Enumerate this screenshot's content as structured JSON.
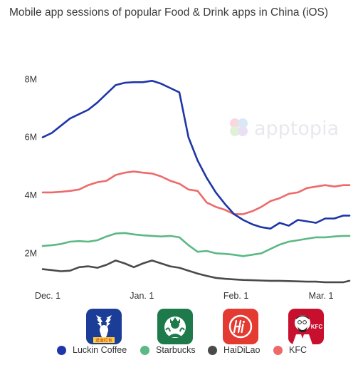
{
  "title": "Mobile app sessions of popular Food & Drink apps in China (iOS)",
  "watermark": "apptopia",
  "legend": [
    {
      "name": "Luckin Coffee",
      "color": "#1e36a8"
    },
    {
      "name": "Starbucks",
      "color": "#5cb884"
    },
    {
      "name": "HaiDiLao",
      "color": "#4a4a4a"
    },
    {
      "name": "KFC",
      "color": "#ee6a6a"
    }
  ],
  "logos": [
    {
      "icon": "luckin-deer-logo",
      "caption": "送金红包",
      "bg": "#1b3c97"
    },
    {
      "icon": "starbucks-siren-logo",
      "bg": "#1e7a4b"
    },
    {
      "icon": "haidilao-hi-logo",
      "bg": "#e33a32"
    },
    {
      "icon": "kfc-colonel-logo",
      "caption": "KFC",
      "bg": "#c8102e"
    }
  ],
  "chart_data": {
    "type": "line",
    "title": "Mobile app sessions of popular Food & Drink apps in China (iOS)",
    "xlabel": "",
    "ylabel": "",
    "x_tick_labels": [
      "Dec. 1",
      "Jan. 1",
      "Feb. 1",
      "Mar. 1"
    ],
    "x_tick_days": [
      0,
      31,
      62,
      90
    ],
    "y_tick_labels": [
      "2M",
      "4M",
      "6M",
      "8M"
    ],
    "y_tick_values": [
      2,
      4,
      6,
      8
    ],
    "ylim": [
      0.9,
      8.4
    ],
    "xlim": [
      0,
      101
    ],
    "grid": false,
    "legend_position": "bottom",
    "x": [
      0,
      3,
      6,
      9,
      12,
      15,
      18,
      21,
      24,
      27,
      30,
      33,
      36,
      39,
      42,
      45,
      48,
      51,
      54,
      57,
      60,
      63,
      66,
      69,
      72,
      75,
      78,
      81,
      84,
      87,
      90,
      93,
      96,
      99,
      101
    ],
    "series": [
      {
        "name": "Luckin Coffee",
        "values": [
          6.0,
          6.15,
          6.4,
          6.65,
          6.8,
          6.95,
          7.2,
          7.5,
          7.8,
          7.88,
          7.9,
          7.9,
          7.95,
          7.85,
          7.7,
          7.55,
          6.0,
          5.2,
          4.6,
          4.1,
          3.7,
          3.35,
          3.15,
          3.0,
          2.9,
          2.85,
          3.05,
          2.95,
          3.15,
          3.1,
          3.05,
          3.2,
          3.2,
          3.3,
          3.3
        ]
      },
      {
        "name": "Starbucks",
        "values": [
          2.25,
          2.28,
          2.32,
          2.4,
          2.42,
          2.4,
          2.45,
          2.58,
          2.68,
          2.7,
          2.65,
          2.62,
          2.6,
          2.58,
          2.6,
          2.55,
          2.28,
          2.05,
          2.08,
          2.0,
          1.98,
          1.95,
          1.9,
          1.95,
          2.0,
          2.15,
          2.3,
          2.4,
          2.45,
          2.5,
          2.55,
          2.55,
          2.58,
          2.6,
          2.6
        ]
      },
      {
        "name": "HaiDiLao",
        "values": [
          1.45,
          1.42,
          1.38,
          1.4,
          1.52,
          1.55,
          1.5,
          1.6,
          1.75,
          1.65,
          1.52,
          1.65,
          1.75,
          1.65,
          1.55,
          1.5,
          1.4,
          1.3,
          1.22,
          1.15,
          1.12,
          1.1,
          1.08,
          1.07,
          1.06,
          1.05,
          1.05,
          1.04,
          1.03,
          1.02,
          1.02,
          1.0,
          1.0,
          1.0,
          1.05
        ]
      },
      {
        "name": "KFC",
        "values": [
          4.1,
          4.1,
          4.12,
          4.15,
          4.2,
          4.35,
          4.45,
          4.5,
          4.7,
          4.78,
          4.82,
          4.78,
          4.75,
          4.65,
          4.5,
          4.4,
          4.2,
          4.15,
          3.75,
          3.6,
          3.5,
          3.35,
          3.35,
          3.45,
          3.6,
          3.8,
          3.9,
          4.05,
          4.1,
          4.25,
          4.3,
          4.35,
          4.3,
          4.35,
          4.35
        ]
      }
    ]
  }
}
